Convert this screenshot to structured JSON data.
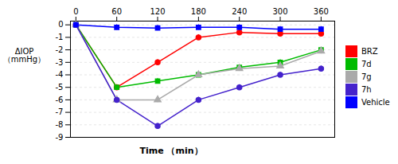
{
  "chart_data": {
    "type": "line",
    "x": [
      0,
      60,
      120,
      180,
      240,
      300,
      360
    ],
    "xlabel": "Time  （min）",
    "ylabel": "ΔIOP\n（mmHg）",
    "xlim": [
      -8,
      380
    ],
    "xticks": [
      0,
      60,
      120,
      180,
      240,
      300,
      360
    ],
    "ylim": [
      -9,
      0.3
    ],
    "yticks": [
      0,
      -1,
      -2,
      -3,
      -4,
      -5,
      -6,
      -7,
      -8,
      -9
    ],
    "grid": true,
    "legend": "right",
    "series": [
      {
        "name": "BRZ",
        "color": "#ff0000",
        "marker": "circle",
        "values": [
          0,
          -5.0,
          -3.0,
          -1.0,
          -0.6,
          -0.7,
          -0.7
        ],
        "errors": [
          0.22,
          0.22,
          0.22,
          0.22,
          0.22,
          0.22,
          0.22
        ]
      },
      {
        "name": "7d",
        "color": "#00bb00",
        "marker": "square",
        "values": [
          0,
          -5.0,
          -4.5,
          -4.0,
          -3.4,
          -3.0,
          -2.0
        ],
        "errors": [
          0.22,
          0.22,
          0.22,
          0.22,
          0.22,
          0.22,
          0.22
        ]
      },
      {
        "name": "7g",
        "color": "#aaaaaa",
        "marker": "triangle",
        "values": [
          0,
          -6.0,
          -6.0,
          -4.0,
          -3.5,
          -3.3,
          -2.1
        ],
        "errors": [
          0.22,
          0.22,
          0.22,
          0.22,
          0.22,
          0.22,
          0.22
        ]
      },
      {
        "name": "7h",
        "color": "#4422cc",
        "marker": "circle",
        "values": [
          0,
          -6.0,
          -8.1,
          -6.0,
          -5.0,
          -4.0,
          -3.5
        ],
        "errors": [
          0.22,
          0.22,
          0.22,
          0.22,
          0.22,
          0.22,
          0.22
        ]
      },
      {
        "name": "Vehicle",
        "color": "#0000ff",
        "marker": "square",
        "values": [
          0,
          -0.2,
          -0.25,
          -0.2,
          -0.2,
          -0.35,
          -0.35
        ],
        "errors": [
          0.22,
          0.22,
          0.22,
          0.22,
          0.22,
          0.22,
          0.22
        ]
      }
    ]
  }
}
